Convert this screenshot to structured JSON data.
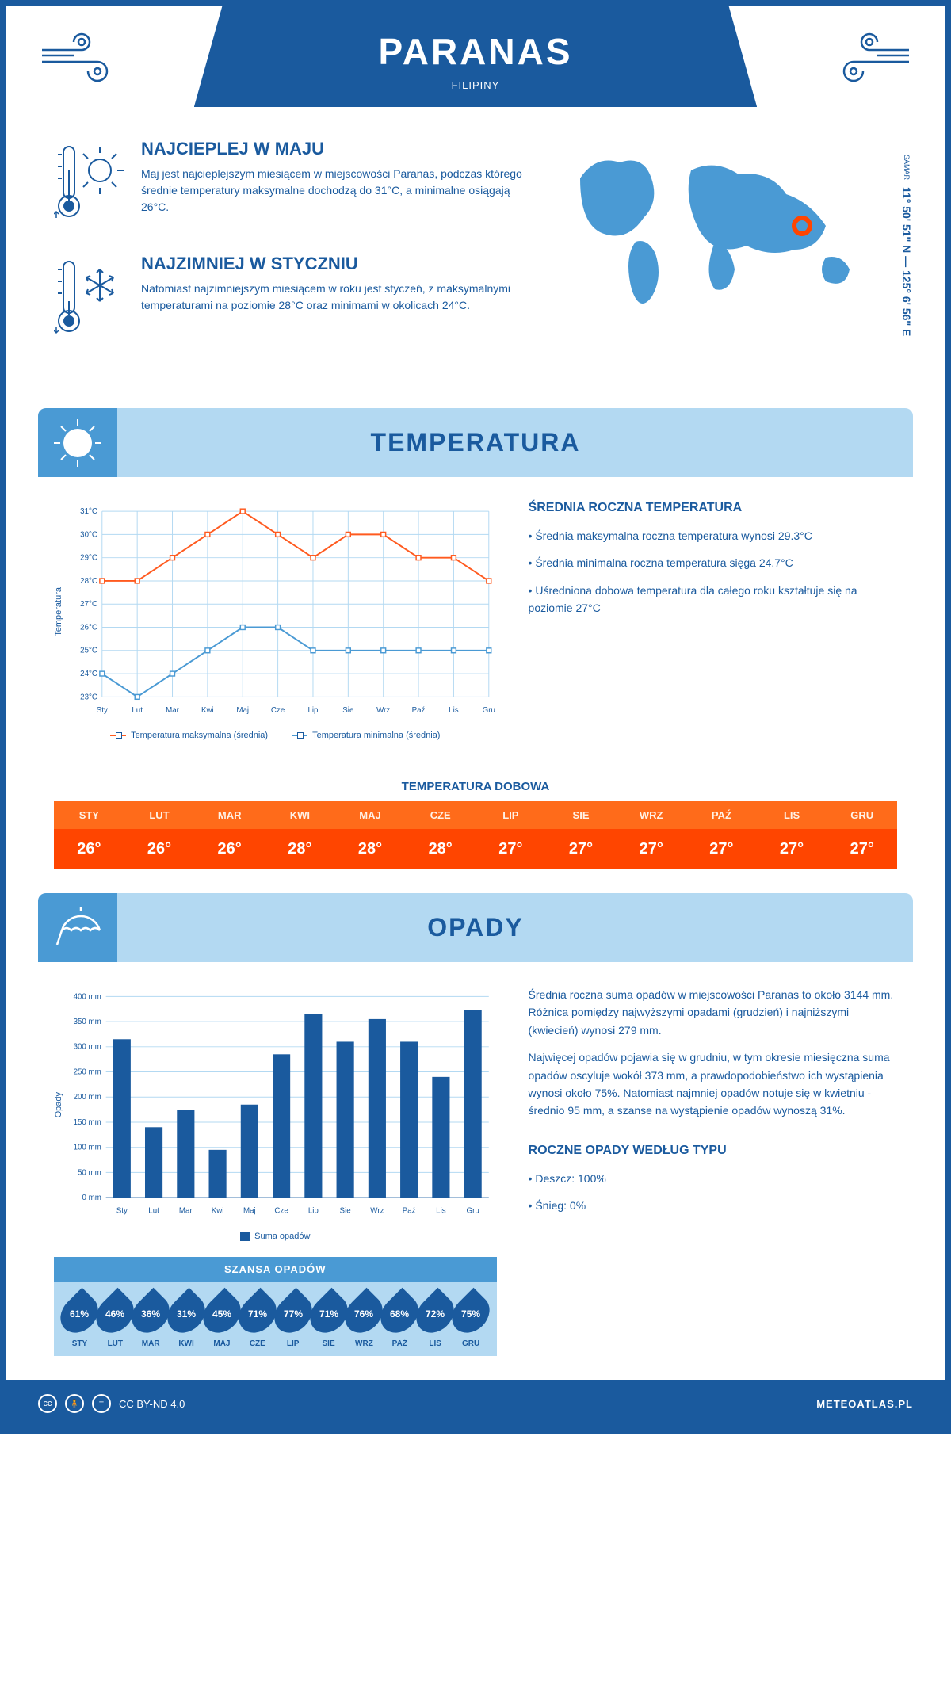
{
  "header": {
    "title": "PARANAS",
    "country": "FILIPINY"
  },
  "coords": {
    "region": "SAMAR",
    "coord": "11° 50' 51'' N — 125° 6' 56'' E"
  },
  "colors": {
    "primary": "#1a5a9e",
    "lightblue": "#b3d9f2",
    "midblue": "#4a9ad4",
    "orange_header": "#ff6b1a",
    "orange_cell": "#ff4500",
    "max_line": "#ff5a1f",
    "min_line": "#4a9ad4",
    "grid": "#b3d9f2",
    "bar": "#1a5a9e"
  },
  "info_warm": {
    "title": "NAJCIEPLEJ W MAJU",
    "text": "Maj jest najcieplejszym miesiącem w miejscowości Paranas, podczas którego średnie temperatury maksymalne dochodzą do 31°C, a minimalne osiągają 26°C."
  },
  "info_cold": {
    "title": "NAJZIMNIEJ W STYCZNIU",
    "text": "Natomiast najzimniejszym miesiącem w roku jest styczeń, z maksymalnymi temperaturami na poziomie 28°C oraz minimami w okolicach 24°C."
  },
  "temp_section": {
    "title": "TEMPERATURA",
    "info_title": "ŚREDNIA ROCZNA TEMPERATURA",
    "bullets": [
      "• Średnia maksymalna roczna temperatura wynosi 29.3°C",
      "• Średnia minimalna roczna temperatura sięga 24.7°C",
      "• Uśredniona dobowa temperatura dla całego roku kształtuje się na poziomie 27°C"
    ],
    "chart": {
      "type": "line",
      "months": [
        "Sty",
        "Lut",
        "Mar",
        "Kwi",
        "Maj",
        "Cze",
        "Lip",
        "Sie",
        "Wrz",
        "Paź",
        "Lis",
        "Gru"
      ],
      "max_series": [
        28,
        28,
        29,
        30,
        31,
        30,
        29,
        30,
        30,
        29,
        29,
        28
      ],
      "min_series": [
        24,
        23,
        24,
        25,
        26,
        26,
        25,
        25,
        25,
        25,
        25,
        25
      ],
      "ylim": [
        23,
        31
      ],
      "ytick_step": 1,
      "y_unit": "°C",
      "ylabel": "Temperatura",
      "legend_max": "Temperatura maksymalna (średnia)",
      "legend_min": "Temperatura minimalna (średnia)"
    },
    "daily_title": "TEMPERATURA DOBOWA",
    "daily": {
      "months": [
        "STY",
        "LUT",
        "MAR",
        "KWI",
        "MAJ",
        "CZE",
        "LIP",
        "SIE",
        "WRZ",
        "PAŹ",
        "LIS",
        "GRU"
      ],
      "values": [
        "26°",
        "26°",
        "26°",
        "28°",
        "28°",
        "28°",
        "27°",
        "27°",
        "27°",
        "27°",
        "27°",
        "27°"
      ]
    }
  },
  "precip_section": {
    "title": "OPADY",
    "text1": "Średnia roczna suma opadów w miejscowości Paranas to około 3144 mm. Różnica pomiędzy najwyższymi opadami (grudzień) i najniższymi (kwiecień) wynosi 279 mm.",
    "text2": "Najwięcej opadów pojawia się w grudniu, w tym okresie miesięczna suma opadów oscyluje wokół 373 mm, a prawdopodobieństwo ich wystąpienia wynosi około 75%. Natomiast najmniej opadów notuje się w kwietniu - średnio 95 mm, a szanse na wystąpienie opadów wynoszą 31%.",
    "chart": {
      "type": "bar",
      "months": [
        "Sty",
        "Lut",
        "Mar",
        "Kwi",
        "Maj",
        "Cze",
        "Lip",
        "Sie",
        "Wrz",
        "Paź",
        "Lis",
        "Gru"
      ],
      "values": [
        315,
        140,
        175,
        95,
        185,
        285,
        365,
        310,
        355,
        310,
        240,
        373
      ],
      "ylim": [
        0,
        400
      ],
      "ytick_step": 50,
      "y_unit": " mm",
      "ylabel": "Opady",
      "legend": "Suma opadów"
    },
    "chance_title": "SZANSA OPADÓW",
    "chance": {
      "months": [
        "STY",
        "LUT",
        "MAR",
        "KWI",
        "MAJ",
        "CZE",
        "LIP",
        "SIE",
        "WRZ",
        "PAŹ",
        "LIS",
        "GRU"
      ],
      "values": [
        "61%",
        "46%",
        "36%",
        "31%",
        "45%",
        "71%",
        "77%",
        "71%",
        "76%",
        "68%",
        "72%",
        "75%"
      ]
    },
    "type_title": "ROCZNE OPADY WEDŁUG TYPU",
    "type_bullets": [
      "• Deszcz: 100%",
      "• Śnieg: 0%"
    ]
  },
  "footer": {
    "license": "CC BY-ND 4.0",
    "site": "METEOATLAS.PL"
  }
}
